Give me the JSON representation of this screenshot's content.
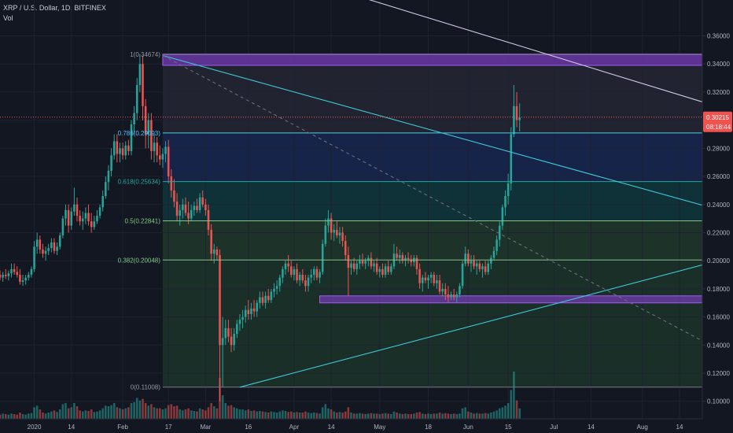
{
  "header": {
    "symbol_line": "XRP / U.S. Dollar, 1D, BITFINEX",
    "volume_label": "Vol"
  },
  "price_badge": {
    "value": "0.30215",
    "countdown": "08:18:44"
  },
  "colors": {
    "background": "#131722",
    "up": "#26a69a",
    "down": "#ef5350",
    "fib_line": "#4dd0e1",
    "fib_green": "#81c784",
    "zone": "#8e3fe0",
    "trend": "#3fc9d6",
    "resistance": "#d1c9e8",
    "price_line": "#ef5350",
    "axis_text": "#b2b5be"
  },
  "chart_data": {
    "type": "candlestick",
    "title": "XRP / U.S. Dollar, 1D, BITFINEX",
    "xlabel": "",
    "ylabel": "",
    "ylim": [
      0.0875,
      0.3855
    ],
    "y_ticks": [
      "0.10000",
      "0.12000",
      "0.14000",
      "0.16000",
      "0.18000",
      "0.20000",
      "0.22000",
      "0.24000",
      "0.26000",
      "0.28000",
      "0.30000",
      "0.32000",
      "0.34000",
      "0.36000"
    ],
    "x_tick_labels": [
      "2020",
      "14",
      "Feb",
      "17",
      "Mar",
      "16",
      "Apr",
      "14",
      "May",
      "18",
      "Jun",
      "15",
      "Jul",
      "14",
      "Aug",
      "14"
    ],
    "x_tick_dates": [
      "2020-01-01",
      "2020-01-14",
      "2020-02-01",
      "2020-02-17",
      "2020-03-01",
      "2020-03-16",
      "2020-04-01",
      "2020-04-14",
      "2020-05-01",
      "2020-05-18",
      "2020-06-01",
      "2020-06-15",
      "2020-07-01",
      "2020-07-14",
      "2020-08-01",
      "2020-08-14"
    ],
    "x_range": [
      "2019-12-20",
      "2020-08-22"
    ],
    "last_price": 0.30215,
    "fib_retracement": {
      "start_date": "2020-02-15",
      "end_date": "2020-08-22",
      "levels": [
        {
          "label": "1(0.34674)",
          "ratio": 1,
          "price": 0.34674
        },
        {
          "label": "0.786(0.29093)",
          "ratio": 0.786,
          "price": 0.29093
        },
        {
          "label": "0.618(0.25634)",
          "ratio": 0.618,
          "price": 0.25634
        },
        {
          "label": "0.5(0.22841)",
          "ratio": 0.5,
          "price": 0.22841
        },
        {
          "label": "0.382(0.20048)",
          "ratio": 0.382,
          "price": 0.20048
        },
        {
          "label": "0(0.11008)",
          "ratio": 0,
          "price": 0.11008
        }
      ]
    },
    "zones": [
      {
        "start": "2020-02-15",
        "end": "2020-08-22",
        "low": 0.339,
        "high": 0.347
      },
      {
        "start": "2020-04-10",
        "end": "2020-08-22",
        "low": 0.17,
        "high": 0.175
      }
    ],
    "trendlines": [
      {
        "name": "resistance",
        "from": [
          "2020-03-25",
          0.4065
        ],
        "to": [
          "2020-08-22",
          0.313
        ],
        "style": "solid"
      },
      {
        "name": "descending",
        "from": [
          "2020-02-15",
          0.346
        ],
        "to": [
          "2020-08-22",
          0.2395
        ],
        "style": "solid"
      },
      {
        "name": "dashed",
        "from": [
          "2020-02-15",
          0.346
        ],
        "to": [
          "2020-08-22",
          0.143
        ],
        "style": "dashed"
      },
      {
        "name": "ascending",
        "from": [
          "2020-03-13",
          0.11
        ],
        "to": [
          "2020-08-22",
          0.197
        ],
        "style": "solid"
      }
    ],
    "candles_start": "2019-12-20",
    "candles": [
      [
        0.19,
        0.193,
        0.186,
        0.188
      ],
      [
        0.188,
        0.192,
        0.185,
        0.19
      ],
      [
        0.19,
        0.194,
        0.187,
        0.189
      ],
      [
        0.189,
        0.193,
        0.186,
        0.191
      ],
      [
        0.191,
        0.198,
        0.188,
        0.194
      ],
      [
        0.194,
        0.198,
        0.19,
        0.192
      ],
      [
        0.192,
        0.196,
        0.188,
        0.19
      ],
      [
        0.19,
        0.194,
        0.183,
        0.185
      ],
      [
        0.185,
        0.19,
        0.182,
        0.186
      ],
      [
        0.186,
        0.19,
        0.183,
        0.188
      ],
      [
        0.188,
        0.192,
        0.186,
        0.19
      ],
      [
        0.19,
        0.196,
        0.188,
        0.194
      ],
      [
        0.194,
        0.214,
        0.192,
        0.21
      ],
      [
        0.21,
        0.22,
        0.205,
        0.215
      ],
      [
        0.215,
        0.218,
        0.205,
        0.208
      ],
      [
        0.208,
        0.212,
        0.202,
        0.205
      ],
      [
        0.205,
        0.21,
        0.2,
        0.207
      ],
      [
        0.207,
        0.212,
        0.204,
        0.209
      ],
      [
        0.209,
        0.216,
        0.206,
        0.213
      ],
      [
        0.213,
        0.216,
        0.205,
        0.207
      ],
      [
        0.207,
        0.213,
        0.204,
        0.21
      ],
      [
        0.21,
        0.22,
        0.208,
        0.218
      ],
      [
        0.218,
        0.232,
        0.216,
        0.23
      ],
      [
        0.23,
        0.24,
        0.225,
        0.236
      ],
      [
        0.236,
        0.24,
        0.22,
        0.225
      ],
      [
        0.225,
        0.238,
        0.222,
        0.235
      ],
      [
        0.235,
        0.252,
        0.232,
        0.24
      ],
      [
        0.24,
        0.245,
        0.228,
        0.232
      ],
      [
        0.232,
        0.236,
        0.225,
        0.228
      ],
      [
        0.228,
        0.235,
        0.222,
        0.23
      ],
      [
        0.23,
        0.238,
        0.226,
        0.234
      ],
      [
        0.234,
        0.24,
        0.225,
        0.228
      ],
      [
        0.228,
        0.234,
        0.22,
        0.224
      ],
      [
        0.224,
        0.232,
        0.222,
        0.228
      ],
      [
        0.228,
        0.236,
        0.226,
        0.232
      ],
      [
        0.232,
        0.24,
        0.23,
        0.238
      ],
      [
        0.238,
        0.25,
        0.235,
        0.246
      ],
      [
        0.246,
        0.26,
        0.244,
        0.256
      ],
      [
        0.256,
        0.268,
        0.25,
        0.264
      ],
      [
        0.264,
        0.28,
        0.26,
        0.275
      ],
      [
        0.275,
        0.29,
        0.272,
        0.285
      ],
      [
        0.285,
        0.29,
        0.27,
        0.276
      ],
      [
        0.276,
        0.284,
        0.27,
        0.28
      ],
      [
        0.28,
        0.284,
        0.272,
        0.275
      ],
      [
        0.275,
        0.285,
        0.272,
        0.282
      ],
      [
        0.282,
        0.286,
        0.275,
        0.278
      ],
      [
        0.278,
        0.3,
        0.275,
        0.297
      ],
      [
        0.297,
        0.31,
        0.29,
        0.305
      ],
      [
        0.305,
        0.33,
        0.3,
        0.325
      ],
      [
        0.325,
        0.347,
        0.32,
        0.34
      ],
      [
        0.34,
        0.346,
        0.3,
        0.31
      ],
      [
        0.31,
        0.315,
        0.28,
        0.29
      ],
      [
        0.29,
        0.305,
        0.28,
        0.3
      ],
      [
        0.3,
        0.305,
        0.272,
        0.278
      ],
      [
        0.278,
        0.29,
        0.27,
        0.284
      ],
      [
        0.284,
        0.288,
        0.27,
        0.275
      ],
      [
        0.275,
        0.282,
        0.268,
        0.272
      ],
      [
        0.272,
        0.28,
        0.266,
        0.276
      ],
      [
        0.276,
        0.285,
        0.27,
        0.281
      ],
      [
        0.281,
        0.286,
        0.255,
        0.26
      ],
      [
        0.26,
        0.265,
        0.245,
        0.25
      ],
      [
        0.25,
        0.258,
        0.238,
        0.242
      ],
      [
        0.242,
        0.248,
        0.228,
        0.232
      ],
      [
        0.232,
        0.24,
        0.225,
        0.236
      ],
      [
        0.236,
        0.244,
        0.23,
        0.24
      ],
      [
        0.24,
        0.245,
        0.232,
        0.234
      ],
      [
        0.234,
        0.242,
        0.226,
        0.23
      ],
      [
        0.23,
        0.24,
        0.228,
        0.236
      ],
      [
        0.236,
        0.242,
        0.232,
        0.239
      ],
      [
        0.239,
        0.244,
        0.234,
        0.236
      ],
      [
        0.236,
        0.248,
        0.234,
        0.245
      ],
      [
        0.245,
        0.25,
        0.238,
        0.24
      ],
      [
        0.24,
        0.244,
        0.232,
        0.236
      ],
      [
        0.236,
        0.24,
        0.218,
        0.222
      ],
      [
        0.222,
        0.226,
        0.2,
        0.205
      ],
      [
        0.205,
        0.212,
        0.198,
        0.208
      ],
      [
        0.208,
        0.21,
        0.2,
        0.204
      ],
      [
        0.204,
        0.208,
        0.1,
        0.14
      ],
      [
        0.14,
        0.16,
        0.11,
        0.145
      ],
      [
        0.145,
        0.158,
        0.14,
        0.152
      ],
      [
        0.152,
        0.158,
        0.142,
        0.146
      ],
      [
        0.146,
        0.152,
        0.135,
        0.14
      ],
      [
        0.14,
        0.152,
        0.136,
        0.148
      ],
      [
        0.148,
        0.158,
        0.145,
        0.155
      ],
      [
        0.155,
        0.162,
        0.15,
        0.158
      ],
      [
        0.158,
        0.165,
        0.152,
        0.16
      ],
      [
        0.16,
        0.168,
        0.156,
        0.165
      ],
      [
        0.165,
        0.172,
        0.158,
        0.162
      ],
      [
        0.162,
        0.17,
        0.158,
        0.166
      ],
      [
        0.166,
        0.172,
        0.16,
        0.164
      ],
      [
        0.164,
        0.172,
        0.16,
        0.17
      ],
      [
        0.17,
        0.178,
        0.166,
        0.174
      ],
      [
        0.174,
        0.178,
        0.168,
        0.17
      ],
      [
        0.17,
        0.178,
        0.166,
        0.175
      ],
      [
        0.175,
        0.18,
        0.17,
        0.172
      ],
      [
        0.172,
        0.18,
        0.17,
        0.178
      ],
      [
        0.178,
        0.184,
        0.174,
        0.18
      ],
      [
        0.18,
        0.186,
        0.176,
        0.182
      ],
      [
        0.182,
        0.19,
        0.178,
        0.188
      ],
      [
        0.188,
        0.196,
        0.184,
        0.194
      ],
      [
        0.194,
        0.2,
        0.19,
        0.198
      ],
      [
        0.198,
        0.204,
        0.192,
        0.196
      ],
      [
        0.196,
        0.2,
        0.188,
        0.19
      ],
      [
        0.19,
        0.196,
        0.186,
        0.194
      ],
      [
        0.194,
        0.198,
        0.184,
        0.186
      ],
      [
        0.186,
        0.192,
        0.182,
        0.19
      ],
      [
        0.19,
        0.194,
        0.184,
        0.186
      ],
      [
        0.186,
        0.19,
        0.178,
        0.182
      ],
      [
        0.182,
        0.19,
        0.178,
        0.188
      ],
      [
        0.188,
        0.194,
        0.184,
        0.19
      ],
      [
        0.19,
        0.196,
        0.186,
        0.194
      ],
      [
        0.194,
        0.196,
        0.186,
        0.188
      ],
      [
        0.188,
        0.194,
        0.184,
        0.192
      ],
      [
        0.192,
        0.215,
        0.19,
        0.212
      ],
      [
        0.212,
        0.23,
        0.21,
        0.225
      ],
      [
        0.225,
        0.236,
        0.22,
        0.23
      ],
      [
        0.23,
        0.234,
        0.215,
        0.22
      ],
      [
        0.22,
        0.226,
        0.214,
        0.222
      ],
      [
        0.222,
        0.228,
        0.216,
        0.218
      ],
      [
        0.218,
        0.224,
        0.212,
        0.22
      ],
      [
        0.22,
        0.224,
        0.21,
        0.214
      ],
      [
        0.214,
        0.218,
        0.2,
        0.204
      ],
      [
        0.204,
        0.21,
        0.175,
        0.195
      ],
      [
        0.195,
        0.2,
        0.19,
        0.198
      ],
      [
        0.198,
        0.202,
        0.192,
        0.194
      ],
      [
        0.194,
        0.2,
        0.19,
        0.198
      ],
      [
        0.198,
        0.204,
        0.194,
        0.2
      ],
      [
        0.2,
        0.205,
        0.196,
        0.198
      ],
      [
        0.198,
        0.202,
        0.194,
        0.2
      ],
      [
        0.2,
        0.204,
        0.196,
        0.202
      ],
      [
        0.202,
        0.206,
        0.194,
        0.196
      ],
      [
        0.196,
        0.2,
        0.192,
        0.198
      ],
      [
        0.198,
        0.202,
        0.19,
        0.192
      ],
      [
        0.192,
        0.196,
        0.188,
        0.194
      ],
      [
        0.194,
        0.198,
        0.188,
        0.19
      ],
      [
        0.19,
        0.198,
        0.188,
        0.196
      ],
      [
        0.196,
        0.2,
        0.19,
        0.192
      ],
      [
        0.192,
        0.198,
        0.19,
        0.196
      ],
      [
        0.196,
        0.212,
        0.194,
        0.205
      ],
      [
        0.205,
        0.21,
        0.2,
        0.202
      ],
      [
        0.202,
        0.208,
        0.198,
        0.204
      ],
      [
        0.204,
        0.206,
        0.198,
        0.2
      ],
      [
        0.2,
        0.204,
        0.196,
        0.202
      ],
      [
        0.202,
        0.206,
        0.198,
        0.201
      ],
      [
        0.201,
        0.204,
        0.196,
        0.199
      ],
      [
        0.199,
        0.204,
        0.196,
        0.202
      ],
      [
        0.202,
        0.204,
        0.19,
        0.194
      ],
      [
        0.194,
        0.198,
        0.18,
        0.184
      ],
      [
        0.184,
        0.19,
        0.178,
        0.188
      ],
      [
        0.188,
        0.192,
        0.184,
        0.186
      ],
      [
        0.186,
        0.19,
        0.18,
        0.188
      ],
      [
        0.188,
        0.192,
        0.184,
        0.19
      ],
      [
        0.19,
        0.192,
        0.182,
        0.184
      ],
      [
        0.184,
        0.19,
        0.18,
        0.186
      ],
      [
        0.186,
        0.19,
        0.176,
        0.178
      ],
      [
        0.178,
        0.184,
        0.175,
        0.18
      ],
      [
        0.18,
        0.184,
        0.172,
        0.176
      ],
      [
        0.176,
        0.182,
        0.17,
        0.174
      ],
      [
        0.174,
        0.178,
        0.172,
        0.176
      ],
      [
        0.176,
        0.18,
        0.172,
        0.174
      ],
      [
        0.174,
        0.178,
        0.17,
        0.176
      ],
      [
        0.176,
        0.184,
        0.174,
        0.182
      ],
      [
        0.182,
        0.2,
        0.18,
        0.198
      ],
      [
        0.198,
        0.21,
        0.196,
        0.205
      ],
      [
        0.205,
        0.208,
        0.196,
        0.198
      ],
      [
        0.198,
        0.204,
        0.192,
        0.2
      ],
      [
        0.2,
        0.204,
        0.194,
        0.196
      ],
      [
        0.196,
        0.2,
        0.19,
        0.198
      ],
      [
        0.198,
        0.2,
        0.192,
        0.194
      ],
      [
        0.194,
        0.198,
        0.188,
        0.196
      ],
      [
        0.196,
        0.2,
        0.19,
        0.192
      ],
      [
        0.192,
        0.2,
        0.19,
        0.198
      ],
      [
        0.198,
        0.204,
        0.194,
        0.202
      ],
      [
        0.202,
        0.21,
        0.2,
        0.207
      ],
      [
        0.207,
        0.218,
        0.204,
        0.215
      ],
      [
        0.215,
        0.228,
        0.21,
        0.225
      ],
      [
        0.225,
        0.24,
        0.222,
        0.238
      ],
      [
        0.238,
        0.25,
        0.232,
        0.246
      ],
      [
        0.246,
        0.262,
        0.24,
        0.255
      ],
      [
        0.255,
        0.295,
        0.25,
        0.29
      ],
      [
        0.29,
        0.325,
        0.288,
        0.31
      ],
      [
        0.31,
        0.32,
        0.295,
        0.3
      ],
      [
        0.3,
        0.312,
        0.292,
        0.302
      ]
    ],
    "volume": [
      0.08,
      0.1,
      0.09,
      0.08,
      0.1,
      0.09,
      0.08,
      0.12,
      0.09,
      0.08,
      0.1,
      0.11,
      0.22,
      0.25,
      0.18,
      0.12,
      0.1,
      0.12,
      0.14,
      0.16,
      0.13,
      0.18,
      0.28,
      0.3,
      0.2,
      0.22,
      0.3,
      0.24,
      0.16,
      0.14,
      0.16,
      0.15,
      0.18,
      0.13,
      0.14,
      0.16,
      0.2,
      0.25,
      0.24,
      0.26,
      0.3,
      0.22,
      0.2,
      0.18,
      0.2,
      0.22,
      0.3,
      0.32,
      0.4,
      0.35,
      0.38,
      0.3,
      0.25,
      0.28,
      0.22,
      0.2,
      0.2,
      0.18,
      0.2,
      0.26,
      0.28,
      0.24,
      0.25,
      0.18,
      0.16,
      0.18,
      0.2,
      0.16,
      0.15,
      0.14,
      0.2,
      0.18,
      0.16,
      0.22,
      0.3,
      0.24,
      0.2,
      0.78,
      0.45,
      0.3,
      0.25,
      0.26,
      0.22,
      0.2,
      0.18,
      0.18,
      0.16,
      0.18,
      0.15,
      0.16,
      0.14,
      0.15,
      0.14,
      0.13,
      0.12,
      0.14,
      0.13,
      0.12,
      0.14,
      0.16,
      0.15,
      0.13,
      0.14,
      0.12,
      0.13,
      0.12,
      0.12,
      0.14,
      0.12,
      0.11,
      0.12,
      0.11,
      0.1,
      0.22,
      0.28,
      0.2,
      0.18,
      0.14,
      0.12,
      0.13,
      0.12,
      0.14,
      0.22,
      0.12,
      0.1,
      0.1,
      0.11,
      0.1,
      0.09,
      0.1,
      0.11,
      0.1,
      0.1,
      0.09,
      0.1,
      0.11,
      0.1,
      0.09,
      0.14,
      0.12,
      0.1,
      0.09,
      0.1,
      0.09,
      0.09,
      0.1,
      0.12,
      0.13,
      0.1,
      0.09,
      0.1,
      0.09,
      0.1,
      0.1,
      0.12,
      0.1,
      0.11,
      0.1,
      0.09,
      0.1,
      0.09,
      0.1,
      0.2,
      0.22,
      0.14,
      0.12,
      0.1,
      0.11,
      0.1,
      0.1,
      0.11,
      0.1,
      0.12,
      0.14,
      0.16,
      0.2,
      0.22,
      0.25,
      0.3,
      0.55,
      0.9,
      0.35,
      0.2
    ],
    "volume_max": 0.9
  }
}
